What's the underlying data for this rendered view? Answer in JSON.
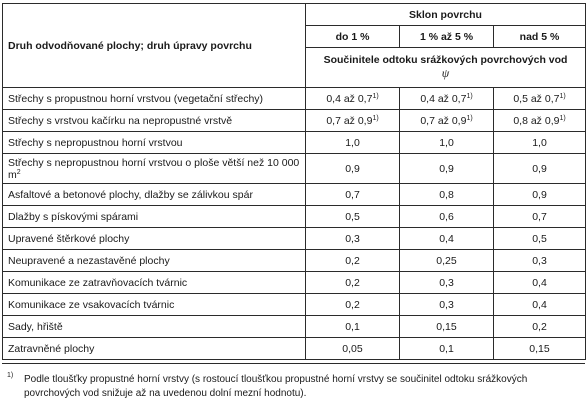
{
  "table": {
    "header": {
      "category": "Druh odvodňované plochy; druh úpravy povrchu",
      "slope_group": "Sklon povrchu",
      "slope_columns": [
        "do 1 %",
        "1 % až 5 %",
        "nad 5 %"
      ],
      "coefficient_title": "Součinitele odtoku srážkových povrchových vod",
      "coefficient_symbol": "ψ"
    },
    "rows": [
      {
        "label": "Střechy s propustnou horní vrstvou (vegetační střechy)",
        "label_sup": "",
        "values": [
          "0,4 až 0,7",
          "0,4 až 0,7",
          "0,5 až 0,7"
        ],
        "sups": [
          "1)",
          "1)",
          "1)"
        ]
      },
      {
        "label": "Střechy s vrstvou kačírku na nepropustné vrstvě",
        "label_sup": "",
        "values": [
          "0,7 až 0,9",
          "0,7 až 0,9",
          "0,8 až 0,9"
        ],
        "sups": [
          "1)",
          "1)",
          "1)"
        ]
      },
      {
        "label": "Střechy s nepropustnou horní vrstvou",
        "label_sup": "",
        "values": [
          "1,0",
          "1,0",
          "1,0"
        ],
        "sups": [
          "",
          "",
          ""
        ]
      },
      {
        "label": "Střechy s nepropustnou horní vrstvou o ploše větší než 10 000 m",
        "label_sup": "2",
        "values": [
          "0,9",
          "0,9",
          "0,9"
        ],
        "sups": [
          "",
          "",
          ""
        ]
      },
      {
        "label": "Asfaltové a betonové plochy, dlažby se zálivkou spár",
        "label_sup": "",
        "values": [
          "0,7",
          "0,8",
          "0,9"
        ],
        "sups": [
          "",
          "",
          ""
        ]
      },
      {
        "label": "Dlažby s pískovými spárami",
        "label_sup": "",
        "values": [
          "0,5",
          "0,6",
          "0,7"
        ],
        "sups": [
          "",
          "",
          ""
        ]
      },
      {
        "label": "Upravené štěrkové plochy",
        "label_sup": "",
        "values": [
          "0,3",
          "0,4",
          "0,5"
        ],
        "sups": [
          "",
          "",
          ""
        ]
      },
      {
        "label": "Neupravené a nezastavěné plochy",
        "label_sup": "",
        "values": [
          "0,2",
          "0,25",
          "0,3"
        ],
        "sups": [
          "",
          "",
          ""
        ]
      },
      {
        "label": "Komunikace ze zatravňovacích tvárnic",
        "label_sup": "",
        "values": [
          "0,2",
          "0,3",
          "0,4"
        ],
        "sups": [
          "",
          "",
          ""
        ]
      },
      {
        "label": "Komunikace ze vsakovacích tvárnic",
        "label_sup": "",
        "values": [
          "0,2",
          "0,3",
          "0,4"
        ],
        "sups": [
          "",
          "",
          ""
        ]
      },
      {
        "label": "Sady, hřiště",
        "label_sup": "",
        "values": [
          "0,1",
          "0,15",
          "0,2"
        ],
        "sups": [
          "",
          "",
          ""
        ]
      },
      {
        "label": "Zatravněné plochy",
        "label_sup": "",
        "values": [
          "0,05",
          "0,1",
          "0,15"
        ],
        "sups": [
          "",
          "",
          ""
        ]
      }
    ]
  },
  "footnote": {
    "mark": "1)",
    "text": "Podle tloušťky propustné horní vrstvy (s rostoucí tloušťkou propustné horní vrstvy se součinitel odtoku srážkových povrchových vod snižuje až na uvedenou dolní mezní hodnotu)."
  }
}
